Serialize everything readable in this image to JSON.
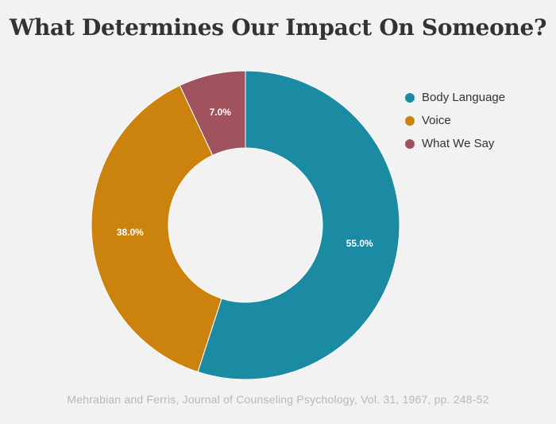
{
  "chart_data": {
    "type": "pie",
    "title": "What Determines Our Impact On Someone?",
    "source": "Mehrabian and Ferris, Journal of Counseling Psychology, Vol. 31, 1967, pp. 248-52",
    "donut": true,
    "legend_position": "top-right",
    "slices": [
      {
        "label": "Body Language",
        "value": 55.0,
        "display": "55.0%",
        "color": "#1b8ba4"
      },
      {
        "label": "Voice",
        "value": 38.0,
        "display": "38.0%",
        "color": "#cc830e"
      },
      {
        "label": "What We Say",
        "value": 7.0,
        "display": "7.0%",
        "color": "#a0525d"
      }
    ]
  }
}
